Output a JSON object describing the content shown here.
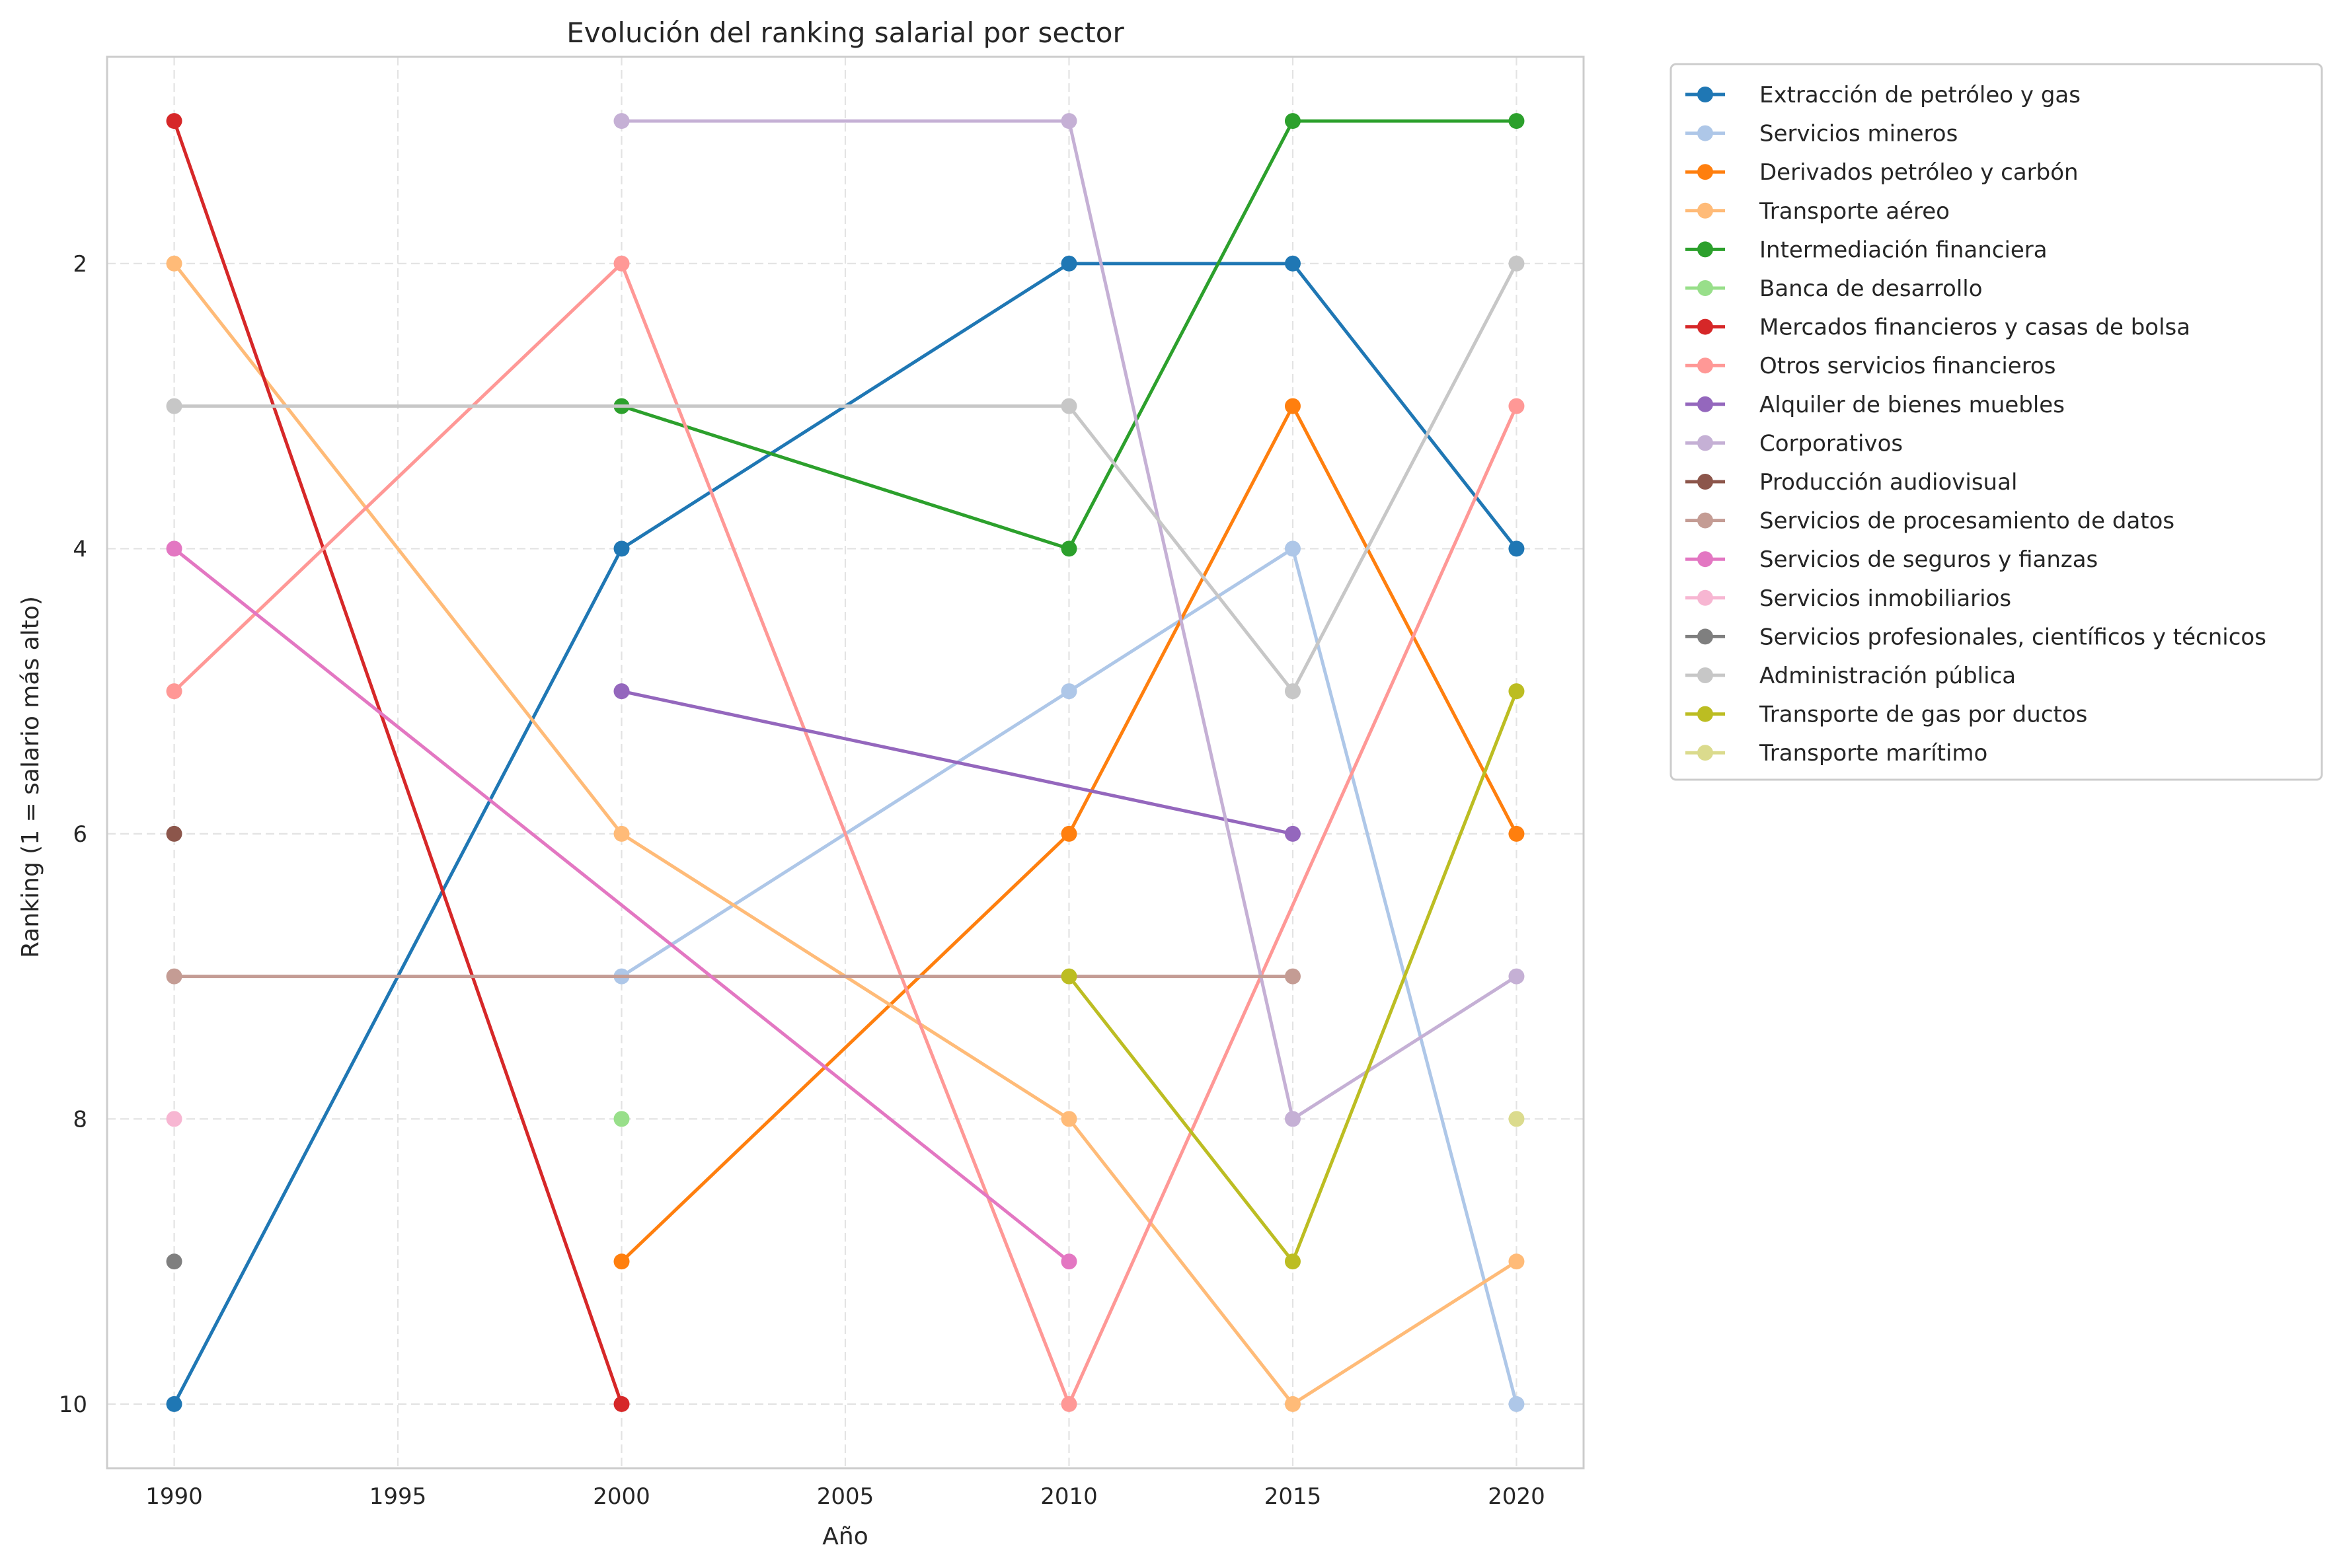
{
  "chart_data": {
    "type": "line",
    "title": "Evolución del ranking salarial por sector",
    "xlabel": "Año",
    "ylabel": "Ranking (1 = salario más alto)",
    "xlim": [
      1988.5,
      2021.5
    ],
    "ylim": [
      10.45,
      0.55
    ],
    "y_inverted": true,
    "xticks": [
      1990,
      1995,
      2000,
      2005,
      2010,
      2015,
      2020
    ],
    "yticks": [
      2,
      4,
      6,
      8,
      10
    ],
    "grid": true,
    "legend_position": "outside right, top",
    "series": [
      {
        "name": "Extracción de petróleo y gas",
        "color": "#1f77b4",
        "points": [
          [
            1990,
            10
          ],
          [
            2000,
            4
          ],
          [
            2010,
            2
          ],
          [
            2015,
            2
          ],
          [
            2020,
            4
          ]
        ]
      },
      {
        "name": "Servicios mineros",
        "color": "#aec7e8",
        "points": [
          [
            2000,
            7
          ],
          [
            2010,
            5
          ],
          [
            2015,
            4
          ],
          [
            2020,
            10
          ]
        ]
      },
      {
        "name": "Derivados petróleo y carbón",
        "color": "#ff7f0e",
        "points": [
          [
            2000,
            9
          ],
          [
            2010,
            6
          ],
          [
            2015,
            3
          ],
          [
            2020,
            6
          ]
        ]
      },
      {
        "name": "Transporte aéreo",
        "color": "#ffbb78",
        "points": [
          [
            1990,
            2
          ],
          [
            2000,
            6
          ],
          [
            2010,
            8
          ],
          [
            2015,
            10
          ],
          [
            2020,
            9
          ]
        ]
      },
      {
        "name": "Intermediación financiera",
        "color": "#2ca02c",
        "points": [
          [
            2000,
            3
          ],
          [
            2010,
            4
          ],
          [
            2015,
            1
          ],
          [
            2020,
            1
          ]
        ]
      },
      {
        "name": "Banca de desarrollo",
        "color": "#98df8a",
        "points": [
          [
            2000,
            8
          ]
        ]
      },
      {
        "name": "Mercados financieros y casas de bolsa",
        "color": "#d62728",
        "points": [
          [
            1990,
            1
          ],
          [
            2000,
            10
          ]
        ]
      },
      {
        "name": "Otros servicios financieros",
        "color": "#ff9896",
        "points": [
          [
            1990,
            5
          ],
          [
            2000,
            2
          ],
          [
            2010,
            10
          ],
          [
            2020,
            3
          ]
        ]
      },
      {
        "name": "Alquiler de bienes muebles",
        "color": "#9467bd",
        "points": [
          [
            2000,
            5
          ],
          [
            2015,
            6
          ]
        ]
      },
      {
        "name": "Corporativos",
        "color": "#c5b0d5",
        "points": [
          [
            2000,
            1
          ],
          [
            2010,
            1
          ],
          [
            2015,
            8
          ],
          [
            2020,
            7
          ]
        ]
      },
      {
        "name": "Producción audiovisual",
        "color": "#8c564b",
        "points": [
          [
            1990,
            6
          ]
        ]
      },
      {
        "name": "Servicios de procesamiento de datos",
        "color": "#c49c94",
        "points": [
          [
            1990,
            7
          ],
          [
            2015,
            7
          ]
        ]
      },
      {
        "name": "Servicios de seguros y fianzas",
        "color": "#e377c2",
        "points": [
          [
            1990,
            4
          ],
          [
            2010,
            9
          ]
        ]
      },
      {
        "name": "Servicios inmobiliarios",
        "color": "#f7b6d2",
        "points": [
          [
            1990,
            8
          ]
        ]
      },
      {
        "name": "Servicios profesionales, científicos y técnicos",
        "color": "#7f7f7f",
        "points": [
          [
            1990,
            9
          ]
        ]
      },
      {
        "name": "Administración pública",
        "color": "#c7c7c7",
        "points": [
          [
            1990,
            3
          ],
          [
            2010,
            3
          ],
          [
            2015,
            5
          ],
          [
            2020,
            2
          ]
        ]
      },
      {
        "name": "Transporte de gas por ductos",
        "color": "#bcbd22",
        "points": [
          [
            2010,
            7
          ],
          [
            2015,
            9
          ],
          [
            2020,
            5
          ]
        ]
      },
      {
        "name": "Transporte marítimo",
        "color": "#dbdb8d",
        "points": [
          [
            2020,
            8
          ]
        ]
      }
    ]
  }
}
